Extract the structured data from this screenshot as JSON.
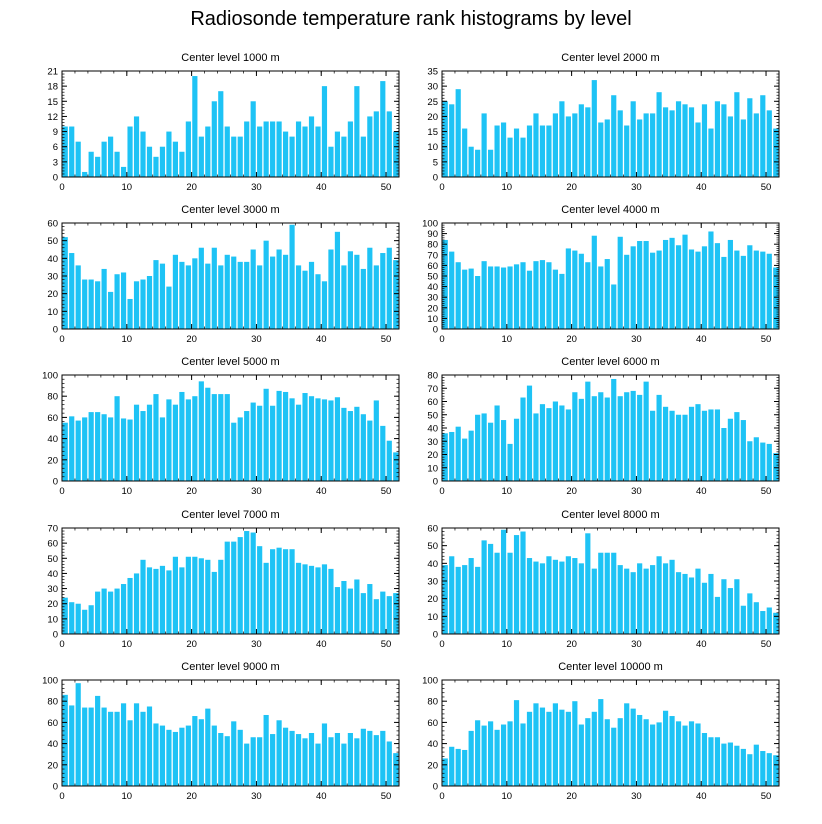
{
  "title": "Radiosonde temperature rank histograms by level",
  "colors": {
    "bar": "#1ec3f5",
    "axis": "#000000",
    "background": "#ffffff"
  },
  "chart_data": [
    {
      "type": "bar",
      "title": "Center level 1000 m",
      "xlabel": "",
      "ylabel": "",
      "xlim": [
        0,
        52
      ],
      "ylim": [
        0,
        21
      ],
      "xticks": [
        0,
        10,
        20,
        30,
        40,
        50
      ],
      "yticks": [
        0,
        3,
        6,
        9,
        12,
        15,
        18,
        21
      ],
      "x": [
        0,
        1,
        2,
        3,
        4,
        5,
        6,
        7,
        8,
        9,
        10,
        11,
        12,
        13,
        14,
        15,
        16,
        17,
        18,
        19,
        20,
        21,
        22,
        23,
        24,
        25,
        26,
        27,
        28,
        29,
        30,
        31,
        32,
        33,
        34,
        35,
        36,
        37,
        38,
        39,
        40,
        41,
        42,
        43,
        44,
        45,
        46,
        47,
        48,
        49,
        50,
        51
      ],
      "values": [
        10,
        10,
        7,
        1,
        5,
        4,
        7,
        8,
        5,
        2,
        10,
        12,
        9,
        6,
        4,
        6,
        9,
        7,
        5,
        11,
        20,
        8,
        10,
        15,
        17,
        10,
        8,
        8,
        11,
        15,
        10,
        11,
        11,
        11,
        9,
        8,
        11,
        10,
        12,
        10,
        18,
        6,
        9,
        8,
        11,
        18,
        8,
        12,
        13,
        19,
        13,
        9
      ]
    },
    {
      "type": "bar",
      "title": "Center level 2000 m",
      "xlabel": "",
      "ylabel": "",
      "xlim": [
        0,
        52
      ],
      "ylim": [
        0,
        35
      ],
      "xticks": [
        0,
        10,
        20,
        30,
        40,
        50
      ],
      "yticks": [
        0,
        5,
        10,
        15,
        20,
        25,
        30,
        35
      ],
      "x": [
        0,
        1,
        2,
        3,
        4,
        5,
        6,
        7,
        8,
        9,
        10,
        11,
        12,
        13,
        14,
        15,
        16,
        17,
        18,
        19,
        20,
        21,
        22,
        23,
        24,
        25,
        26,
        27,
        28,
        29,
        30,
        31,
        32,
        33,
        34,
        35,
        36,
        37,
        38,
        39,
        40,
        41,
        42,
        43,
        44,
        45,
        46,
        47,
        48,
        49,
        50,
        51
      ],
      "values": [
        25,
        24,
        29,
        16,
        10,
        9,
        21,
        9,
        17,
        18,
        13,
        16,
        13,
        17,
        21,
        17,
        17,
        21,
        25,
        20,
        21,
        24,
        23,
        32,
        18,
        19,
        27,
        22,
        17,
        25,
        19,
        21,
        21,
        28,
        23,
        22,
        25,
        24,
        23,
        18,
        24,
        16,
        25,
        24,
        20,
        28,
        19,
        26,
        21,
        27,
        22,
        16
      ]
    },
    {
      "type": "bar",
      "title": "Center level 3000 m",
      "xlabel": "",
      "ylabel": "",
      "xlim": [
        0,
        52
      ],
      "ylim": [
        0,
        60
      ],
      "xticks": [
        0,
        10,
        20,
        30,
        40,
        50
      ],
      "yticks": [
        0,
        10,
        20,
        30,
        40,
        50,
        60
      ],
      "x": [
        0,
        1,
        2,
        3,
        4,
        5,
        6,
        7,
        8,
        9,
        10,
        11,
        12,
        13,
        14,
        15,
        16,
        17,
        18,
        19,
        20,
        21,
        22,
        23,
        24,
        25,
        26,
        27,
        28,
        29,
        30,
        31,
        32,
        33,
        34,
        35,
        36,
        37,
        38,
        39,
        40,
        41,
        42,
        43,
        44,
        45,
        46,
        47,
        48,
        49,
        50,
        51
      ],
      "values": [
        52,
        43,
        36,
        28,
        28,
        27,
        34,
        21,
        31,
        32,
        17,
        27,
        28,
        30,
        39,
        37,
        24,
        42,
        38,
        36,
        40,
        46,
        37,
        46,
        36,
        42,
        41,
        38,
        38,
        45,
        36,
        50,
        41,
        45,
        42,
        59,
        36,
        33,
        38,
        31,
        27,
        45,
        55,
        36,
        44,
        42,
        34,
        46,
        36,
        43,
        46,
        39
      ]
    },
    {
      "type": "bar",
      "title": "Center level 4000 m",
      "xlabel": "",
      "ylabel": "",
      "xlim": [
        0,
        52
      ],
      "ylim": [
        0,
        100
      ],
      "xticks": [
        0,
        10,
        20,
        30,
        40,
        50
      ],
      "yticks": [
        0,
        10,
        20,
        30,
        40,
        50,
        60,
        70,
        80,
        90,
        100
      ],
      "x": [
        0,
        1,
        2,
        3,
        4,
        5,
        6,
        7,
        8,
        9,
        10,
        11,
        12,
        13,
        14,
        15,
        16,
        17,
        18,
        19,
        20,
        21,
        22,
        23,
        24,
        25,
        26,
        27,
        28,
        29,
        30,
        31,
        32,
        33,
        34,
        35,
        36,
        37,
        38,
        39,
        40,
        41,
        42,
        43,
        44,
        45,
        46,
        47,
        48,
        49,
        50,
        51
      ],
      "values": [
        84,
        73,
        63,
        56,
        57,
        50,
        64,
        59,
        59,
        58,
        59,
        61,
        63,
        55,
        64,
        65,
        63,
        56,
        52,
        76,
        74,
        71,
        63,
        88,
        59,
        66,
        42,
        87,
        70,
        78,
        83,
        83,
        72,
        74,
        84,
        86,
        79,
        89,
        75,
        73,
        78,
        92,
        81,
        68,
        84,
        74,
        69,
        79,
        74,
        73,
        71,
        58
      ]
    },
    {
      "type": "bar",
      "title": "Center level 5000 m",
      "xlabel": "",
      "ylabel": "",
      "xlim": [
        0,
        52
      ],
      "ylim": [
        0,
        100
      ],
      "xticks": [
        0,
        10,
        20,
        30,
        40,
        50
      ],
      "yticks": [
        0,
        20,
        40,
        60,
        80,
        100
      ],
      "x": [
        0,
        1,
        2,
        3,
        4,
        5,
        6,
        7,
        8,
        9,
        10,
        11,
        12,
        13,
        14,
        15,
        16,
        17,
        18,
        19,
        20,
        21,
        22,
        23,
        24,
        25,
        26,
        27,
        28,
        29,
        30,
        31,
        32,
        33,
        34,
        35,
        36,
        37,
        38,
        39,
        40,
        41,
        42,
        43,
        44,
        45,
        46,
        47,
        48,
        49,
        50,
        51
      ],
      "values": [
        55,
        61,
        57,
        60,
        65,
        65,
        63,
        60,
        80,
        59,
        58,
        72,
        66,
        72,
        82,
        60,
        77,
        72,
        84,
        77,
        80,
        94,
        88,
        82,
        82,
        82,
        55,
        60,
        66,
        74,
        71,
        87,
        71,
        85,
        84,
        78,
        72,
        83,
        80,
        78,
        77,
        76,
        79,
        69,
        66,
        70,
        63,
        57,
        76,
        52,
        38,
        27
      ]
    },
    {
      "type": "bar",
      "title": "Center level 6000 m",
      "xlabel": "",
      "ylabel": "",
      "xlim": [
        0,
        52
      ],
      "ylim": [
        0,
        80
      ],
      "xticks": [
        0,
        10,
        20,
        30,
        40,
        50
      ],
      "yticks": [
        0,
        10,
        20,
        30,
        40,
        50,
        60,
        70,
        80
      ],
      "x": [
        0,
        1,
        2,
        3,
        4,
        5,
        6,
        7,
        8,
        9,
        10,
        11,
        12,
        13,
        14,
        15,
        16,
        17,
        18,
        19,
        20,
        21,
        22,
        23,
        24,
        25,
        26,
        27,
        28,
        29,
        30,
        31,
        32,
        33,
        34,
        35,
        36,
        37,
        38,
        39,
        40,
        41,
        42,
        43,
        44,
        45,
        46,
        47,
        48,
        49,
        50,
        51
      ],
      "values": [
        36,
        37,
        41,
        32,
        38,
        50,
        51,
        44,
        57,
        46,
        28,
        47,
        63,
        72,
        51,
        58,
        55,
        60,
        57,
        54,
        67,
        62,
        75,
        64,
        67,
        63,
        77,
        64,
        67,
        68,
        65,
        75,
        53,
        65,
        56,
        53,
        50,
        50,
        56,
        58,
        53,
        54,
        54,
        40,
        47,
        52,
        46,
        30,
        33,
        29,
        28,
        21
      ]
    },
    {
      "type": "bar",
      "title": "Center level 7000 m",
      "xlabel": "",
      "ylabel": "",
      "xlim": [
        0,
        52
      ],
      "ylim": [
        0,
        70
      ],
      "xticks": [
        0,
        10,
        20,
        30,
        40,
        50
      ],
      "yticks": [
        0,
        10,
        20,
        30,
        40,
        50,
        60,
        70
      ],
      "x": [
        0,
        1,
        2,
        3,
        4,
        5,
        6,
        7,
        8,
        9,
        10,
        11,
        12,
        13,
        14,
        15,
        16,
        17,
        18,
        19,
        20,
        21,
        22,
        23,
        24,
        25,
        26,
        27,
        28,
        29,
        30,
        31,
        32,
        33,
        34,
        35,
        36,
        37,
        38,
        39,
        40,
        41,
        42,
        43,
        44,
        45,
        46,
        47,
        48,
        49,
        50,
        51
      ],
      "values": [
        24,
        21,
        20,
        16,
        19,
        28,
        30,
        28,
        30,
        33,
        37,
        40,
        49,
        44,
        43,
        45,
        42,
        51,
        44,
        51,
        51,
        50,
        49,
        41,
        49,
        61,
        61,
        64,
        68,
        67,
        58,
        47,
        56,
        57,
        56,
        56,
        47,
        46,
        45,
        44,
        46,
        43,
        31,
        35,
        30,
        36,
        27,
        33,
        23,
        28,
        25,
        27
      ]
    },
    {
      "type": "bar",
      "title": "Center level 8000 m",
      "xlabel": "",
      "ylabel": "",
      "xlim": [
        0,
        52
      ],
      "ylim": [
        0,
        60
      ],
      "xticks": [
        0,
        10,
        20,
        30,
        40,
        50
      ],
      "yticks": [
        0,
        10,
        20,
        30,
        40,
        50,
        60
      ],
      "x": [
        0,
        1,
        2,
        3,
        4,
        5,
        6,
        7,
        8,
        9,
        10,
        11,
        12,
        13,
        14,
        15,
        16,
        17,
        18,
        19,
        20,
        21,
        22,
        23,
        24,
        25,
        26,
        27,
        28,
        29,
        30,
        31,
        32,
        33,
        34,
        35,
        36,
        37,
        38,
        39,
        40,
        41,
        42,
        43,
        44,
        45,
        46,
        47,
        48,
        49,
        50,
        51
      ],
      "values": [
        39,
        44,
        38,
        39,
        43,
        38,
        53,
        51,
        46,
        59,
        46,
        56,
        58,
        43,
        41,
        40,
        44,
        42,
        41,
        44,
        43,
        40,
        57,
        37,
        46,
        46,
        46,
        39,
        37,
        35,
        40,
        37,
        39,
        44,
        40,
        42,
        35,
        34,
        32,
        37,
        29,
        34,
        21,
        31,
        26,
        31,
        16,
        23,
        18,
        13,
        15,
        12
      ]
    },
    {
      "type": "bar",
      "title": "Center level 9000 m",
      "xlabel": "",
      "ylabel": "",
      "xlim": [
        0,
        52
      ],
      "ylim": [
        0,
        100
      ],
      "xticks": [
        0,
        10,
        20,
        30,
        40,
        50
      ],
      "yticks": [
        0,
        20,
        40,
        60,
        80,
        100
      ],
      "x": [
        0,
        1,
        2,
        3,
        4,
        5,
        6,
        7,
        8,
        9,
        10,
        11,
        12,
        13,
        14,
        15,
        16,
        17,
        18,
        19,
        20,
        21,
        22,
        23,
        24,
        25,
        26,
        27,
        28,
        29,
        30,
        31,
        32,
        33,
        34,
        35,
        36,
        37,
        38,
        39,
        40,
        41,
        42,
        43,
        44,
        45,
        46,
        47,
        48,
        49,
        50,
        51
      ],
      "values": [
        86,
        76,
        97,
        74,
        74,
        85,
        74,
        70,
        70,
        78,
        62,
        78,
        70,
        75,
        59,
        57,
        53,
        51,
        55,
        57,
        66,
        63,
        73,
        57,
        50,
        47,
        61,
        53,
        40,
        46,
        46,
        67,
        49,
        62,
        55,
        52,
        49,
        45,
        50,
        40,
        59,
        46,
        50,
        40,
        50,
        45,
        54,
        52,
        48,
        52,
        42,
        31
      ]
    },
    {
      "type": "bar",
      "title": "Center level 10000 m",
      "xlabel": "",
      "ylabel": "",
      "xlim": [
        0,
        52
      ],
      "ylim": [
        0,
        100
      ],
      "xticks": [
        0,
        10,
        20,
        30,
        40,
        50
      ],
      "yticks": [
        0,
        20,
        40,
        60,
        80,
        100
      ],
      "x": [
        0,
        1,
        2,
        3,
        4,
        5,
        6,
        7,
        8,
        9,
        10,
        11,
        12,
        13,
        14,
        15,
        16,
        17,
        18,
        19,
        20,
        21,
        22,
        23,
        24,
        25,
        26,
        27,
        28,
        29,
        30,
        31,
        32,
        33,
        34,
        35,
        36,
        37,
        38,
        39,
        40,
        41,
        42,
        43,
        44,
        45,
        46,
        47,
        48,
        49,
        50,
        51
      ],
      "values": [
        26,
        37,
        35,
        34,
        52,
        62,
        57,
        61,
        53,
        58,
        61,
        81,
        59,
        70,
        78,
        74,
        70,
        78,
        72,
        70,
        80,
        58,
        64,
        70,
        82,
        63,
        55,
        64,
        78,
        73,
        67,
        63,
        58,
        60,
        71,
        66,
        61,
        57,
        61,
        59,
        50,
        46,
        46,
        40,
        41,
        38,
        35,
        30,
        39,
        33,
        31,
        29
      ]
    }
  ]
}
